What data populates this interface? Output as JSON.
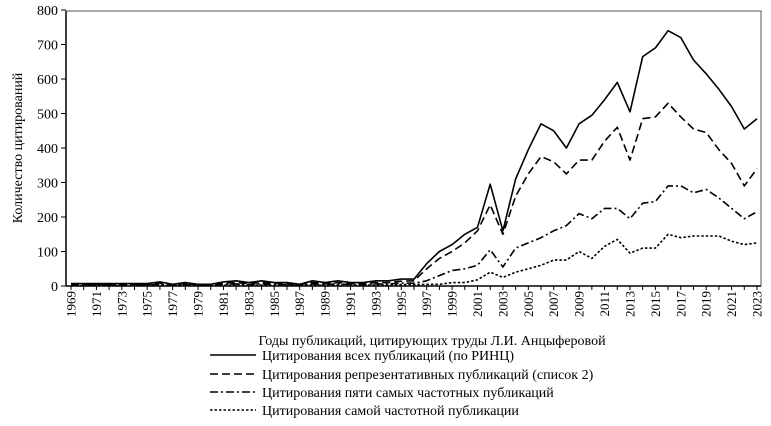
{
  "chart_data": {
    "type": "line",
    "title": "",
    "xlabel": "Годы публикаций, цитирующих труды Л.И. Анцыферовой",
    "ylabel": "Количество цитирований",
    "ylim": [
      0,
      800
    ],
    "yticks": [
      0,
      100,
      200,
      300,
      400,
      500,
      600,
      700,
      800
    ],
    "xlim": [
      1969,
      2023
    ],
    "grid": false,
    "legend_position": "bottom",
    "x": [
      1969,
      1970,
      1971,
      1972,
      1973,
      1974,
      1975,
      1976,
      1977,
      1978,
      1979,
      1980,
      1981,
      1982,
      1983,
      1984,
      1985,
      1986,
      1987,
      1988,
      1989,
      1990,
      1991,
      1992,
      1993,
      1994,
      1995,
      1996,
      1997,
      1998,
      1999,
      2000,
      2001,
      2002,
      2003,
      2004,
      2005,
      2006,
      2007,
      2008,
      2009,
      2010,
      2011,
      2012,
      2013,
      2014,
      2015,
      2016,
      2017,
      2018,
      2019,
      2020,
      2021,
      2022,
      2023
    ],
    "xtick_labels": [
      "1969",
      "1971",
      "1973",
      "1975",
      "1977",
      "1979",
      "1981",
      "1983",
      "1985",
      "1987",
      "1989",
      "1991",
      "1993",
      "1995",
      "1997",
      "1999",
      "2001",
      "2003",
      "2005",
      "2007",
      "2009",
      "2011",
      "2013",
      "2015",
      "2017",
      "2019",
      "2021",
      "2023"
    ],
    "series": [
      {
        "name": "Цитирования всех публикаций (по РИНЦ)",
        "style": "solid",
        "values": [
          7,
          7,
          7,
          7,
          7,
          7,
          7,
          12,
          5,
          10,
          5,
          5,
          12,
          15,
          10,
          15,
          10,
          10,
          5,
          15,
          10,
          15,
          10,
          10,
          15,
          15,
          20,
          20,
          65,
          100,
          120,
          150,
          170,
          295,
          160,
          310,
          395,
          470,
          450,
          400,
          470,
          495,
          540,
          590,
          505,
          665,
          690,
          740,
          720,
          655,
          615,
          570,
          520,
          455,
          485
        ]
      },
      {
        "name": "Цитирования репрезентативных публикаций (список 2)",
        "style": "dashed",
        "values": [
          5,
          5,
          5,
          5,
          5,
          5,
          5,
          8,
          4,
          7,
          4,
          4,
          8,
          10,
          7,
          10,
          7,
          7,
          4,
          10,
          7,
          10,
          7,
          7,
          10,
          10,
          14,
          15,
          50,
          80,
          100,
          125,
          160,
          235,
          150,
          260,
          325,
          375,
          360,
          325,
          365,
          365,
          420,
          460,
          365,
          485,
          490,
          530,
          490,
          455,
          445,
          395,
          355,
          290,
          340
        ]
      },
      {
        "name": "Цитирования пяти самых частотных публикаций",
        "style": "dashdot",
        "values": [
          3,
          3,
          3,
          3,
          3,
          3,
          3,
          5,
          2,
          4,
          2,
          2,
          5,
          6,
          4,
          6,
          4,
          4,
          2,
          6,
          4,
          6,
          4,
          4,
          6,
          6,
          8,
          8,
          15,
          30,
          45,
          50,
          60,
          105,
          55,
          110,
          125,
          140,
          160,
          175,
          210,
          195,
          225,
          225,
          195,
          240,
          245,
          290,
          290,
          270,
          280,
          255,
          225,
          195,
          215
        ]
      },
      {
        "name": "Цитирования самой частотной публикации",
        "style": "dotted",
        "values": [
          1,
          1,
          1,
          1,
          1,
          1,
          1,
          2,
          1,
          2,
          1,
          1,
          2,
          3,
          2,
          3,
          2,
          2,
          1,
          3,
          2,
          3,
          2,
          2,
          3,
          3,
          4,
          4,
          5,
          5,
          10,
          10,
          18,
          40,
          25,
          40,
          50,
          60,
          75,
          75,
          100,
          80,
          115,
          135,
          95,
          110,
          110,
          150,
          140,
          145,
          145,
          145,
          130,
          120,
          125
        ]
      }
    ]
  }
}
